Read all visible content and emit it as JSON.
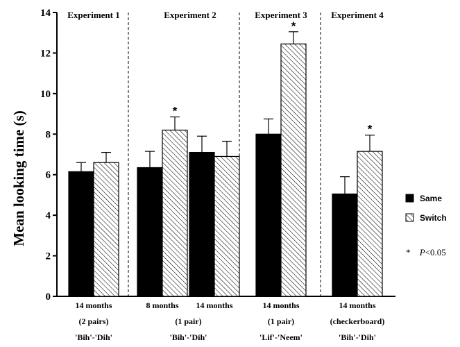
{
  "chart_data": {
    "type": "bar",
    "ylabel": "Mean looking time (s)",
    "ylim": [
      0,
      14
    ],
    "yticks": [
      "0",
      "2",
      "4",
      "6",
      "8",
      "10",
      "12",
      "14"
    ],
    "series": [
      {
        "name": "Same",
        "color": "#000000",
        "pattern": "solid"
      },
      {
        "name": "Switch",
        "color": "#ffffff",
        "pattern": "diagonal-hatch"
      }
    ],
    "panels": [
      {
        "title": "Experiment 1",
        "groups": [
          {
            "label_lines": [
              "14  months",
              "(2  pairs)",
              "'Bih'-'Dih'"
            ],
            "same": {
              "value": 6.15,
              "error": 0.45,
              "sig": false
            },
            "switch": {
              "value": 6.6,
              "error": 0.5,
              "sig": false
            }
          }
        ]
      },
      {
        "title": "Experiment 2",
        "groups": [
          {
            "label_lines": [
              "8  months"
            ],
            "same": {
              "value": 6.35,
              "error": 0.8,
              "sig": false
            },
            "switch": {
              "value": 8.2,
              "error": 0.65,
              "sig": true
            }
          },
          {
            "label_lines": [
              "14  months"
            ],
            "same": {
              "value": 7.1,
              "error": 0.8,
              "sig": false
            },
            "switch": {
              "value": 6.9,
              "error": 0.75,
              "sig": false
            }
          }
        ],
        "shared_lines": [
          "(1  pair)",
          "'Bih'-'Dih'"
        ]
      },
      {
        "title": "Experiment 3",
        "groups": [
          {
            "label_lines": [
              "14  months",
              "(1  pair)",
              "'Lif'-'Neem'"
            ],
            "same": {
              "value": 8.0,
              "error": 0.75,
              "sig": false
            },
            "switch": {
              "value": 12.45,
              "error": 0.6,
              "sig": true
            }
          }
        ]
      },
      {
        "title": "Experiment 4",
        "groups": [
          {
            "label_lines": [
              "14  months",
              "(checkerboard)",
              "'Bih'-'Dih'"
            ],
            "same": {
              "value": 5.05,
              "error": 0.85,
              "sig": false
            },
            "switch": {
              "value": 7.15,
              "error": 0.8,
              "sig": true
            }
          }
        ]
      }
    ],
    "significance_marker": "*",
    "significance_note": {
      "star": "*",
      "p": "P",
      "rest": "<0.05"
    }
  }
}
